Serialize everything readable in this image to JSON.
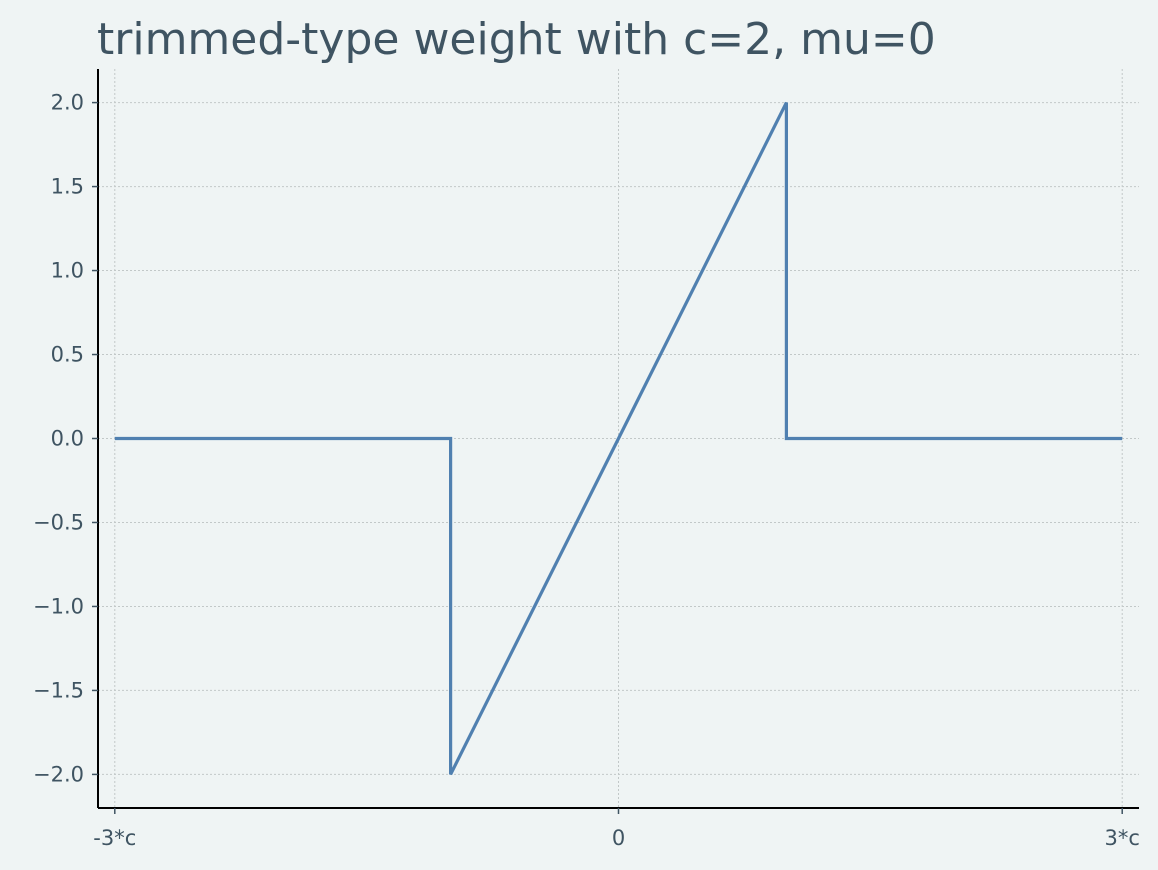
{
  "chart_data": {
    "type": "line",
    "title": "trimmed-type weight with c=2, mu=0",
    "xlabel": "",
    "ylabel": "",
    "c": 2,
    "xlim": [
      -6.2,
      6.2
    ],
    "ylim": [
      -2.2,
      2.2
    ],
    "x_ticks": [
      {
        "value": -6,
        "label": "-3*c"
      },
      {
        "value": 0,
        "label": "0"
      },
      {
        "value": 6,
        "label": "3*c"
      }
    ],
    "y_ticks": [
      {
        "value": 2.0,
        "label": "2.0"
      },
      {
        "value": 1.5,
        "label": "1.5"
      },
      {
        "value": 1.0,
        "label": "1.0"
      },
      {
        "value": 0.5,
        "label": "0.5"
      },
      {
        "value": 0.0,
        "label": "0.0"
      },
      {
        "value": -0.5,
        "label": "−0.5"
      },
      {
        "value": -1.0,
        "label": "−1.0"
      },
      {
        "value": -1.5,
        "label": "−1.5"
      },
      {
        "value": -2.0,
        "label": "−2.0"
      }
    ],
    "grid": true,
    "series": [
      {
        "color": "#5080b0",
        "x": [
          -6,
          -2,
          -2,
          2,
          2,
          6
        ],
        "y": [
          0,
          0,
          -2,
          2,
          0,
          0
        ]
      }
    ]
  }
}
